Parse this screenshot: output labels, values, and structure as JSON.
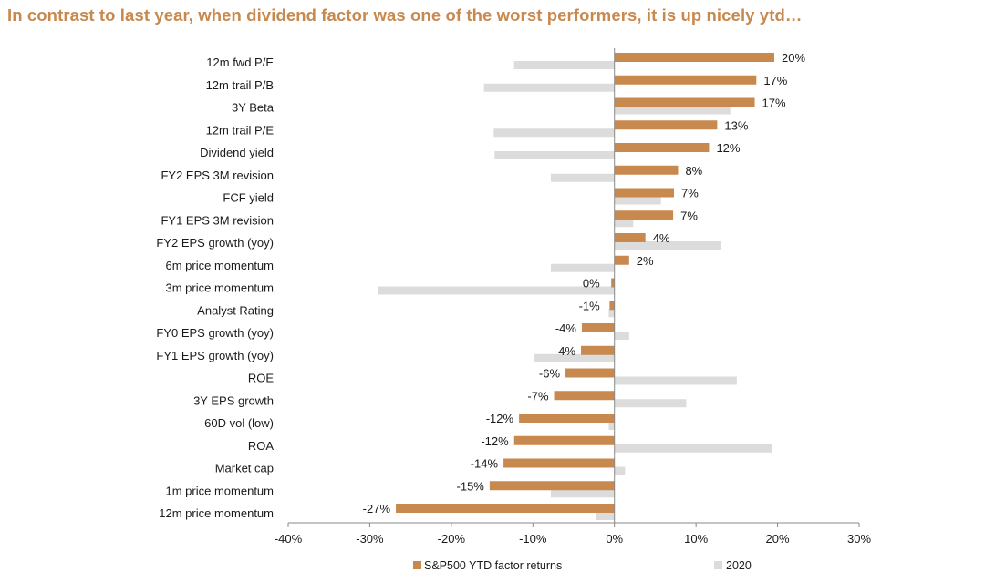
{
  "headline": "In contrast to last year, when dividend factor was one of the worst performers, it is up nicely ytd…",
  "colors": {
    "ytd": "#c8894f",
    "prior": "#dcdcdc",
    "axis": "#888888",
    "headline": "#c8894f"
  },
  "chart_data": {
    "type": "bar",
    "orientation": "horizontal",
    "categories": [
      "12m fwd P/E",
      "12m trail P/B",
      "3Y Beta",
      "12m trail P/E",
      "Dividend yield",
      "FY2 EPS 3M revision",
      "FCF yield",
      "FY1 EPS 3M revision",
      "FY2 EPS growth (yoy)",
      "6m price momentum",
      "3m price momentum",
      "Analyst Rating",
      "FY0 EPS growth (yoy)",
      "FY1 EPS growth (yoy)",
      "ROE",
      "3Y EPS growth",
      "60D vol (low)",
      "ROA",
      "Market cap",
      "1m price momentum",
      "12m price momentum"
    ],
    "series": [
      {
        "name": "S&P500 YTD factor returns",
        "values": [
          19.6,
          17.4,
          17.2,
          12.6,
          11.6,
          7.8,
          7.3,
          7.2,
          3.8,
          1.8,
          -0.4,
          -0.6,
          -4.0,
          -4.1,
          -6.0,
          -7.4,
          -11.7,
          -12.3,
          -13.6,
          -15.3,
          -26.8
        ],
        "labels": [
          "20%",
          "17%",
          "17%",
          "13%",
          "12%",
          "8%",
          "7%",
          "7%",
          "4%",
          "2%",
          "0%",
          "-1%",
          "-4%",
          "-4%",
          "-6%",
          "-7%",
          "-12%",
          "-12%",
          "-14%",
          "-15%",
          "-27%"
        ]
      },
      {
        "name": "2020",
        "values": [
          -12.3,
          -16.0,
          14.2,
          -14.8,
          -14.7,
          -7.8,
          5.7,
          2.3,
          13.0,
          -7.8,
          -29.0,
          -0.7,
          1.8,
          -9.8,
          15.0,
          8.8,
          -0.7,
          19.3,
          1.3,
          -7.8,
          -2.3
        ]
      }
    ],
    "xlim": [
      -40,
      30
    ],
    "xticks": [
      -40,
      -30,
      -20,
      -10,
      0,
      10,
      20,
      30
    ],
    "xtick_labels": [
      "-40%",
      "-30%",
      "-20%",
      "-10%",
      "0%",
      "10%",
      "20%",
      "30%"
    ],
    "legend_position": "bottom",
    "grid": false
  }
}
